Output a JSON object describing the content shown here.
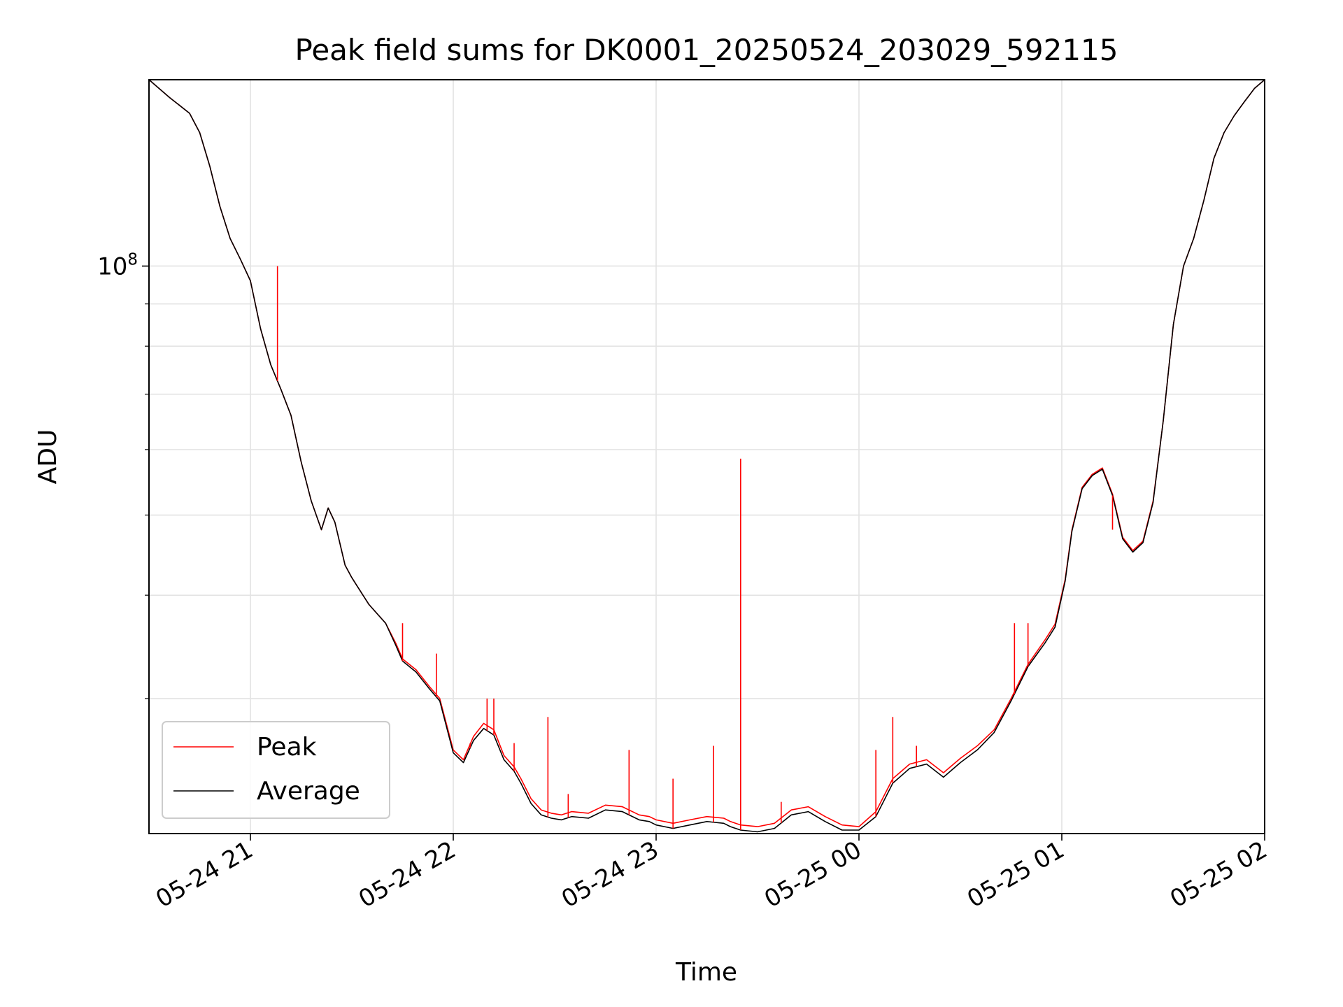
{
  "chart_data": {
    "type": "line",
    "title": "Peak field sums for DK0001_20250524_203029_592115",
    "xlabel": "Time",
    "ylabel": "ADU",
    "x_axis": "datetime",
    "x_range": [
      "2025-05-24 20:30",
      "2025-05-25 02:00"
    ],
    "y_scale": "log",
    "y_range": [
      20600000,
      168000000
    ],
    "grid": true,
    "legend_position": "lower-left",
    "x_tick_values": [
      "2025-05-24 21:00",
      "2025-05-24 22:00",
      "2025-05-24 23:00",
      "2025-05-25 00:00",
      "2025-05-25 01:00",
      "2025-05-25 02:00"
    ],
    "x_tick_labels": [
      "05-24 21",
      "05-24 22",
      "05-24 23",
      "05-25 00",
      "05-25 01",
      "05-25 02"
    ],
    "y_major_ticks": [
      {
        "value": 100000000,
        "base": "10",
        "exponent": "8"
      }
    ],
    "y_minor_ticks": [
      30000000,
      40000000,
      50000000,
      60000000,
      70000000,
      80000000,
      90000000
    ],
    "series": [
      {
        "name": "Peak",
        "color": "#ff0000",
        "x": [
          "2025-05-24 20:30",
          "2025-05-24 20:36",
          "2025-05-24 20:42",
          "2025-05-24 20:45",
          "2025-05-24 20:48",
          "2025-05-24 20:51",
          "2025-05-24 20:54",
          "2025-05-24 20:57",
          "2025-05-24 21:00",
          "2025-05-24 21:03",
          "2025-05-24 21:06",
          "2025-05-24 21:09",
          "2025-05-24 21:12",
          "2025-05-24 21:15",
          "2025-05-24 21:18",
          "2025-05-24 21:21",
          "2025-05-24 21:23",
          "2025-05-24 21:25",
          "2025-05-24 21:28",
          "2025-05-24 21:30",
          "2025-05-24 21:35",
          "2025-05-24 21:40",
          "2025-05-24 21:43",
          "2025-05-24 21:45",
          "2025-05-24 21:49",
          "2025-05-24 21:53",
          "2025-05-24 21:56",
          "2025-05-24 22:00",
          "2025-05-24 22:03",
          "2025-05-24 22:06",
          "2025-05-24 22:09",
          "2025-05-24 22:12",
          "2025-05-24 22:15",
          "2025-05-24 22:18",
          "2025-05-24 22:20",
          "2025-05-24 22:23",
          "2025-05-24 22:26",
          "2025-05-24 22:29",
          "2025-05-24 22:32",
          "2025-05-24 22:35",
          "2025-05-24 22:40",
          "2025-05-24 22:45",
          "2025-05-24 22:50",
          "2025-05-24 22:55",
          "2025-05-24 22:58",
          "2025-05-24 23:00",
          "2025-05-24 23:05",
          "2025-05-24 23:10",
          "2025-05-24 23:15",
          "2025-05-24 23:20",
          "2025-05-24 23:22",
          "2025-05-24 23:25",
          "2025-05-24 23:30",
          "2025-05-24 23:35",
          "2025-05-24 23:40",
          "2025-05-24 23:45",
          "2025-05-24 23:50",
          "2025-05-24 23:55",
          "2025-05-25 00:00",
          "2025-05-25 00:05",
          "2025-05-25 00:10",
          "2025-05-25 00:15",
          "2025-05-25 00:20",
          "2025-05-25 00:25",
          "2025-05-25 00:30",
          "2025-05-25 00:35",
          "2025-05-25 00:40",
          "2025-05-25 00:45",
          "2025-05-25 00:50",
          "2025-05-25 00:55",
          "2025-05-25 00:58",
          "2025-05-25 01:01",
          "2025-05-25 01:03",
          "2025-05-25 01:06",
          "2025-05-25 01:09",
          "2025-05-25 01:12",
          "2025-05-25 01:15",
          "2025-05-25 01:18",
          "2025-05-25 01:21",
          "2025-05-25 01:24",
          "2025-05-25 01:27",
          "2025-05-25 01:30",
          "2025-05-25 01:33",
          "2025-05-25 01:36",
          "2025-05-25 01:39",
          "2025-05-25 01:42",
          "2025-05-25 01:45",
          "2025-05-25 01:48",
          "2025-05-25 01:51",
          "2025-05-25 01:54",
          "2025-05-25 01:57",
          "2025-05-25 02:00"
        ],
        "values": [
          168000000,
          160000000,
          153000000,
          145000000,
          132000000,
          118000000,
          108000000,
          102000000,
          96000000,
          84000000,
          76000000,
          71000000,
          66000000,
          58000000,
          52000000,
          48000000,
          51000000,
          49000000,
          43500000,
          42000000,
          39000000,
          37000000,
          35000000,
          33500000,
          32500000,
          31000000,
          30000000,
          26000000,
          25300000,
          27000000,
          28000000,
          27500000,
          25600000,
          24800000,
          24000000,
          22700000,
          22000000,
          21800000,
          21700000,
          21900000,
          21800000,
          22300000,
          22200000,
          21700000,
          21600000,
          21400000,
          21200000,
          21400000,
          21600000,
          21500000,
          21300000,
          21100000,
          21000000,
          21200000,
          22000000,
          22200000,
          21600000,
          21100000,
          21000000,
          21900000,
          24000000,
          25000000,
          25300000,
          24400000,
          25400000,
          26300000,
          27500000,
          30000000,
          33000000,
          35300000,
          36900000,
          41800000,
          48000000,
          54000000,
          56000000,
          57000000,
          53000000,
          47000000,
          45300000,
          46500000,
          52000000,
          65000000,
          85000000,
          100000000,
          108000000,
          120000000,
          135000000,
          145000000,
          152000000,
          158000000,
          164000000,
          168000000
        ]
      },
      {
        "name": "Average",
        "color": "#000000",
        "x": [
          "2025-05-24 20:30",
          "2025-05-24 20:36",
          "2025-05-24 20:42",
          "2025-05-24 20:45",
          "2025-05-24 20:48",
          "2025-05-24 20:51",
          "2025-05-24 20:54",
          "2025-05-24 20:57",
          "2025-05-24 21:00",
          "2025-05-24 21:03",
          "2025-05-24 21:06",
          "2025-05-24 21:09",
          "2025-05-24 21:12",
          "2025-05-24 21:15",
          "2025-05-24 21:18",
          "2025-05-24 21:21",
          "2025-05-24 21:23",
          "2025-05-24 21:25",
          "2025-05-24 21:28",
          "2025-05-24 21:30",
          "2025-05-24 21:35",
          "2025-05-24 21:40",
          "2025-05-24 21:43",
          "2025-05-24 21:45",
          "2025-05-24 21:49",
          "2025-05-24 21:53",
          "2025-05-24 21:56",
          "2025-05-24 22:00",
          "2025-05-24 22:03",
          "2025-05-24 22:06",
          "2025-05-24 22:09",
          "2025-05-24 22:12",
          "2025-05-24 22:15",
          "2025-05-24 22:18",
          "2025-05-24 22:20",
          "2025-05-24 22:23",
          "2025-05-24 22:26",
          "2025-05-24 22:29",
          "2025-05-24 22:32",
          "2025-05-24 22:35",
          "2025-05-24 22:40",
          "2025-05-24 22:45",
          "2025-05-24 22:50",
          "2025-05-24 22:55",
          "2025-05-24 22:58",
          "2025-05-24 23:00",
          "2025-05-24 23:05",
          "2025-05-24 23:10",
          "2025-05-24 23:15",
          "2025-05-24 23:20",
          "2025-05-24 23:22",
          "2025-05-24 23:25",
          "2025-05-24 23:30",
          "2025-05-24 23:35",
          "2025-05-24 23:40",
          "2025-05-24 23:45",
          "2025-05-24 23:50",
          "2025-05-24 23:55",
          "2025-05-25 00:00",
          "2025-05-25 00:05",
          "2025-05-25 00:10",
          "2025-05-25 00:15",
          "2025-05-25 00:20",
          "2025-05-25 00:25",
          "2025-05-25 00:30",
          "2025-05-25 00:35",
          "2025-05-25 00:40",
          "2025-05-25 00:45",
          "2025-05-25 00:50",
          "2025-05-25 00:55",
          "2025-05-25 00:58",
          "2025-05-25 01:01",
          "2025-05-25 01:03",
          "2025-05-25 01:06",
          "2025-05-25 01:09",
          "2025-05-25 01:12",
          "2025-05-25 01:15",
          "2025-05-25 01:18",
          "2025-05-25 01:21",
          "2025-05-25 01:24",
          "2025-05-25 01:27",
          "2025-05-25 01:30",
          "2025-05-25 01:33",
          "2025-05-25 01:36",
          "2025-05-25 01:39",
          "2025-05-25 01:42",
          "2025-05-25 01:45",
          "2025-05-25 01:48",
          "2025-05-25 01:51",
          "2025-05-25 01:54",
          "2025-05-25 01:57",
          "2025-05-25 02:00"
        ],
        "values": [
          168000000,
          160000000,
          153000000,
          145000000,
          132000000,
          118000000,
          108000000,
          102000000,
          96000000,
          84000000,
          76000000,
          71000000,
          66000000,
          58000000,
          52000000,
          48000000,
          51000000,
          49000000,
          43500000,
          42000000,
          39000000,
          37000000,
          34800000,
          33300000,
          32300000,
          30800000,
          29800000,
          25800000,
          25100000,
          26700000,
          27600000,
          27100000,
          25300000,
          24500000,
          23700000,
          22400000,
          21700000,
          21500000,
          21400000,
          21600000,
          21500000,
          22000000,
          21900000,
          21400000,
          21300000,
          21100000,
          20900000,
          21100000,
          21300000,
          21200000,
          21000000,
          20800000,
          20700000,
          20900000,
          21700000,
          21900000,
          21300000,
          20800000,
          20800000,
          21600000,
          23700000,
          24700000,
          25000000,
          24100000,
          25100000,
          26000000,
          27300000,
          29800000,
          32800000,
          35000000,
          36600000,
          41600000,
          47800000,
          53800000,
          55800000,
          56800000,
          52800000,
          46800000,
          45100000,
          46300000,
          51800000,
          65000000,
          85000000,
          100000000,
          108000000,
          120000000,
          135000000,
          145000000,
          152000000,
          158000000,
          164000000,
          168000000
        ]
      }
    ],
    "peak_spikes": [
      {
        "x": "2025-05-24 21:08",
        "y": 100000000
      },
      {
        "x": "2025-05-24 21:45",
        "y": 37000000
      },
      {
        "x": "2025-05-24 21:55",
        "y": 34000000
      },
      {
        "x": "2025-05-24 22:05",
        "y": 26500000
      },
      {
        "x": "2025-05-24 22:10",
        "y": 30000000
      },
      {
        "x": "2025-05-24 22:12",
        "y": 30000000
      },
      {
        "x": "2025-05-24 22:18",
        "y": 26500000
      },
      {
        "x": "2025-05-24 22:28",
        "y": 28500000
      },
      {
        "x": "2025-05-24 22:34",
        "y": 23000000
      },
      {
        "x": "2025-05-24 22:52",
        "y": 26000000
      },
      {
        "x": "2025-05-24 23:05",
        "y": 24000000
      },
      {
        "x": "2025-05-24 23:17",
        "y": 26300000
      },
      {
        "x": "2025-05-24 23:25",
        "y": 58500000
      },
      {
        "x": "2025-05-24 23:37",
        "y": 22500000
      },
      {
        "x": "2025-05-25 00:05",
        "y": 26000000
      },
      {
        "x": "2025-05-25 00:10",
        "y": 28500000
      },
      {
        "x": "2025-05-25 00:17",
        "y": 26300000
      },
      {
        "x": "2025-05-25 00:46",
        "y": 37000000
      },
      {
        "x": "2025-05-25 00:50",
        "y": 37000000
      },
      {
        "x": "2025-05-25 01:15",
        "y": 48000000
      }
    ],
    "legend": [
      {
        "label": "Peak",
        "color": "#ff0000"
      },
      {
        "label": "Average",
        "color": "#000000"
      }
    ]
  }
}
